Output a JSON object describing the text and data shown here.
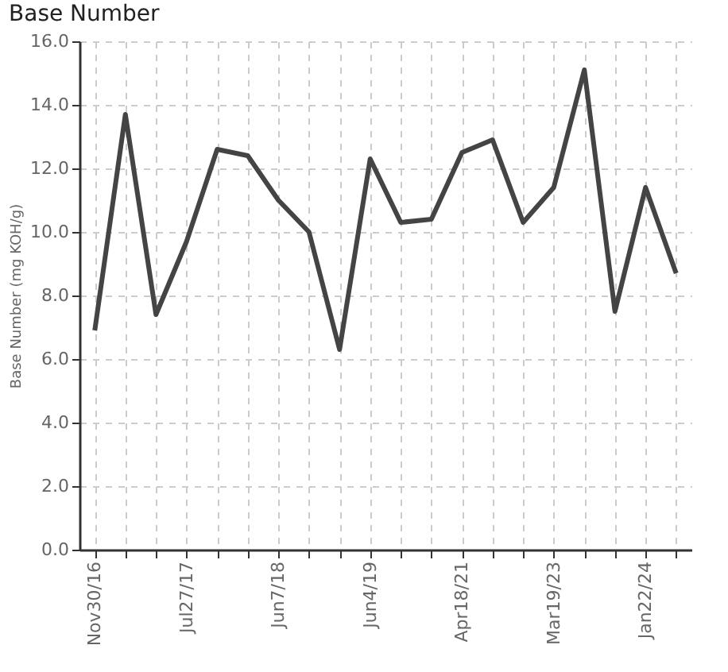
{
  "chart_data": {
    "type": "line",
    "title": "Base Number",
    "ylabel": "Base Number (mg KOH/g)",
    "categories": [
      "Nov30/16",
      null,
      null,
      "Jul27/17",
      null,
      null,
      "Jun7/18",
      null,
      null,
      "Jun4/19",
      null,
      null,
      "Apr18/21",
      null,
      null,
      "Mar19/23",
      null,
      null,
      "Jan22/24",
      null
    ],
    "series": [
      {
        "color": "#444444",
        "values": [
          6.9,
          13.7,
          7.4,
          9.7,
          12.6,
          12.4,
          11.0,
          10.0,
          6.3,
          12.3,
          10.3,
          10.4,
          12.5,
          12.9,
          10.3,
          11.4,
          15.1,
          7.5,
          11.4,
          8.7
        ]
      }
    ],
    "ylim": [
      0,
      16
    ],
    "yticks": [
      {
        "value": 0,
        "label": "0.0"
      },
      {
        "value": 2,
        "label": "2.0"
      },
      {
        "value": 4,
        "label": "4.0"
      },
      {
        "value": 6,
        "label": "6.0"
      },
      {
        "value": 8,
        "label": "8.0"
      },
      {
        "value": 10,
        "label": "10.0"
      },
      {
        "value": 12,
        "label": "12.0"
      },
      {
        "value": 14,
        "label": "14.0"
      },
      {
        "value": 16,
        "label": "16.0"
      }
    ],
    "grid": true,
    "marker": "none",
    "line_style": "solid"
  }
}
